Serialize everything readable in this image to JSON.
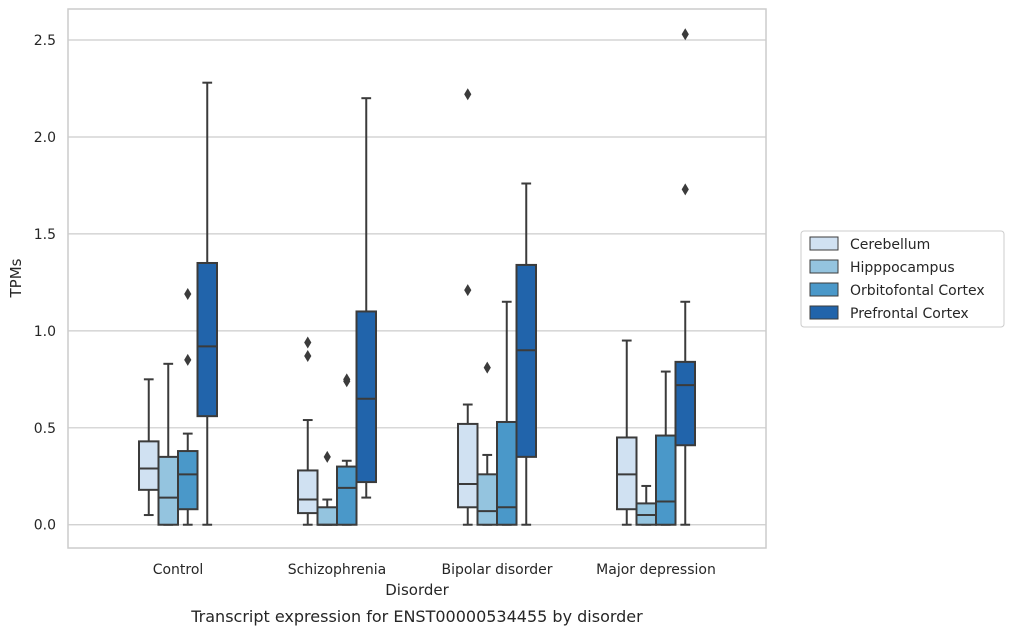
{
  "caption": "Transcript expression for ENST00000534455 by disorder",
  "chart_data": {
    "type": "box",
    "title": "",
    "xlabel": "Disorder",
    "ylabel": "TPMs",
    "ylim": [
      -0.12,
      2.66
    ],
    "yticks": [
      0.0,
      0.5,
      1.0,
      1.5,
      2.0,
      2.5
    ],
    "ytick_labels": [
      "0.0",
      "0.5",
      "1.0",
      "1.5",
      "2.0",
      "2.5"
    ],
    "grid": "horizontal",
    "legend_position": "right",
    "categories": [
      "Control",
      "Schizophrenia",
      "Bipolar disorder",
      "Major depression"
    ],
    "series": [
      {
        "name": "Cerebellum",
        "color": "#d0e1f2",
        "boxes": [
          {
            "whislo": 0.05,
            "q1": 0.18,
            "med": 0.29,
            "q3": 0.43,
            "whishi": 0.75,
            "fliers": []
          },
          {
            "whislo": 0.0,
            "q1": 0.06,
            "med": 0.13,
            "q3": 0.28,
            "whishi": 0.54,
            "fliers": [
              0.87,
              0.94
            ]
          },
          {
            "whislo": 0.0,
            "q1": 0.09,
            "med": 0.21,
            "q3": 0.52,
            "whishi": 0.62,
            "fliers": [
              1.21,
              2.22
            ]
          },
          {
            "whislo": 0.0,
            "q1": 0.08,
            "med": 0.26,
            "q3": 0.45,
            "whishi": 0.95,
            "fliers": []
          }
        ]
      },
      {
        "name": "Hipppocampus",
        "color": "#94c4df",
        "boxes": [
          {
            "whislo": 0.0,
            "q1": 0.0,
            "med": 0.14,
            "q3": 0.35,
            "whishi": 0.83,
            "fliers": []
          },
          {
            "whislo": 0.0,
            "q1": 0.0,
            "med": 0.0,
            "q3": 0.09,
            "whishi": 0.13,
            "fliers": [
              0.35
            ]
          },
          {
            "whislo": 0.0,
            "q1": 0.0,
            "med": 0.07,
            "q3": 0.26,
            "whishi": 0.36,
            "fliers": [
              0.81
            ]
          },
          {
            "whislo": 0.0,
            "q1": 0.0,
            "med": 0.05,
            "q3": 0.11,
            "whishi": 0.2,
            "fliers": []
          }
        ]
      },
      {
        "name": "Orbitofontal Cortex",
        "color": "#4a98c9",
        "boxes": [
          {
            "whislo": 0.0,
            "q1": 0.08,
            "med": 0.26,
            "q3": 0.38,
            "whishi": 0.47,
            "fliers": [
              0.85,
              1.19
            ]
          },
          {
            "whislo": 0.0,
            "q1": 0.0,
            "med": 0.19,
            "q3": 0.3,
            "whishi": 0.33,
            "fliers": [
              0.74,
              0.75
            ]
          },
          {
            "whislo": 0.0,
            "q1": 0.0,
            "med": 0.09,
            "q3": 0.53,
            "whishi": 1.15,
            "fliers": []
          },
          {
            "whislo": 0.0,
            "q1": 0.0,
            "med": 0.12,
            "q3": 0.46,
            "whishi": 0.79,
            "fliers": []
          }
        ]
      },
      {
        "name": "Prefrontal Cortex",
        "color": "#2164ab",
        "boxes": [
          {
            "whislo": 0.0,
            "q1": 0.56,
            "med": 0.92,
            "q3": 1.35,
            "whishi": 2.28,
            "fliers": []
          },
          {
            "whislo": 0.14,
            "q1": 0.22,
            "med": 0.65,
            "q3": 1.1,
            "whishi": 2.2,
            "fliers": []
          },
          {
            "whislo": 0.0,
            "q1": 0.35,
            "med": 0.9,
            "q3": 1.34,
            "whishi": 1.76,
            "fliers": []
          },
          {
            "whislo": 0.0,
            "q1": 0.41,
            "med": 0.72,
            "q3": 0.84,
            "whishi": 1.15,
            "fliers": [
              1.73,
              2.53
            ]
          }
        ]
      }
    ]
  }
}
